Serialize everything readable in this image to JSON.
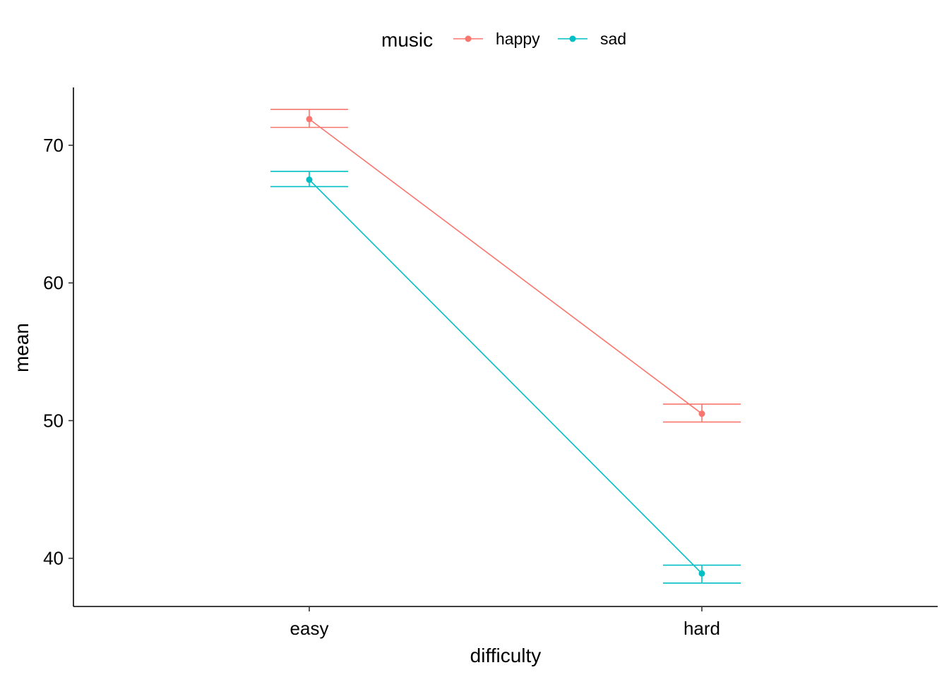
{
  "chart_data": {
    "type": "line",
    "xlabel": "difficulty",
    "ylabel": "mean",
    "categories": [
      "easy",
      "hard"
    ],
    "ylim": [
      36.5,
      74.2
    ],
    "yticks": [
      40,
      50,
      60,
      70
    ],
    "grid": false,
    "legend": {
      "title": "music",
      "position": "top"
    },
    "series": [
      {
        "name": "happy",
        "color": "#F8766D",
        "values": [
          71.9,
          50.5
        ],
        "ci_low": [
          71.3,
          49.9
        ],
        "ci_high": [
          72.6,
          51.2
        ]
      },
      {
        "name": "sad",
        "color": "#00BFC4",
        "values": [
          67.5,
          38.9
        ],
        "ci_low": [
          67.0,
          38.2
        ],
        "ci_high": [
          68.1,
          39.5
        ]
      }
    ]
  }
}
